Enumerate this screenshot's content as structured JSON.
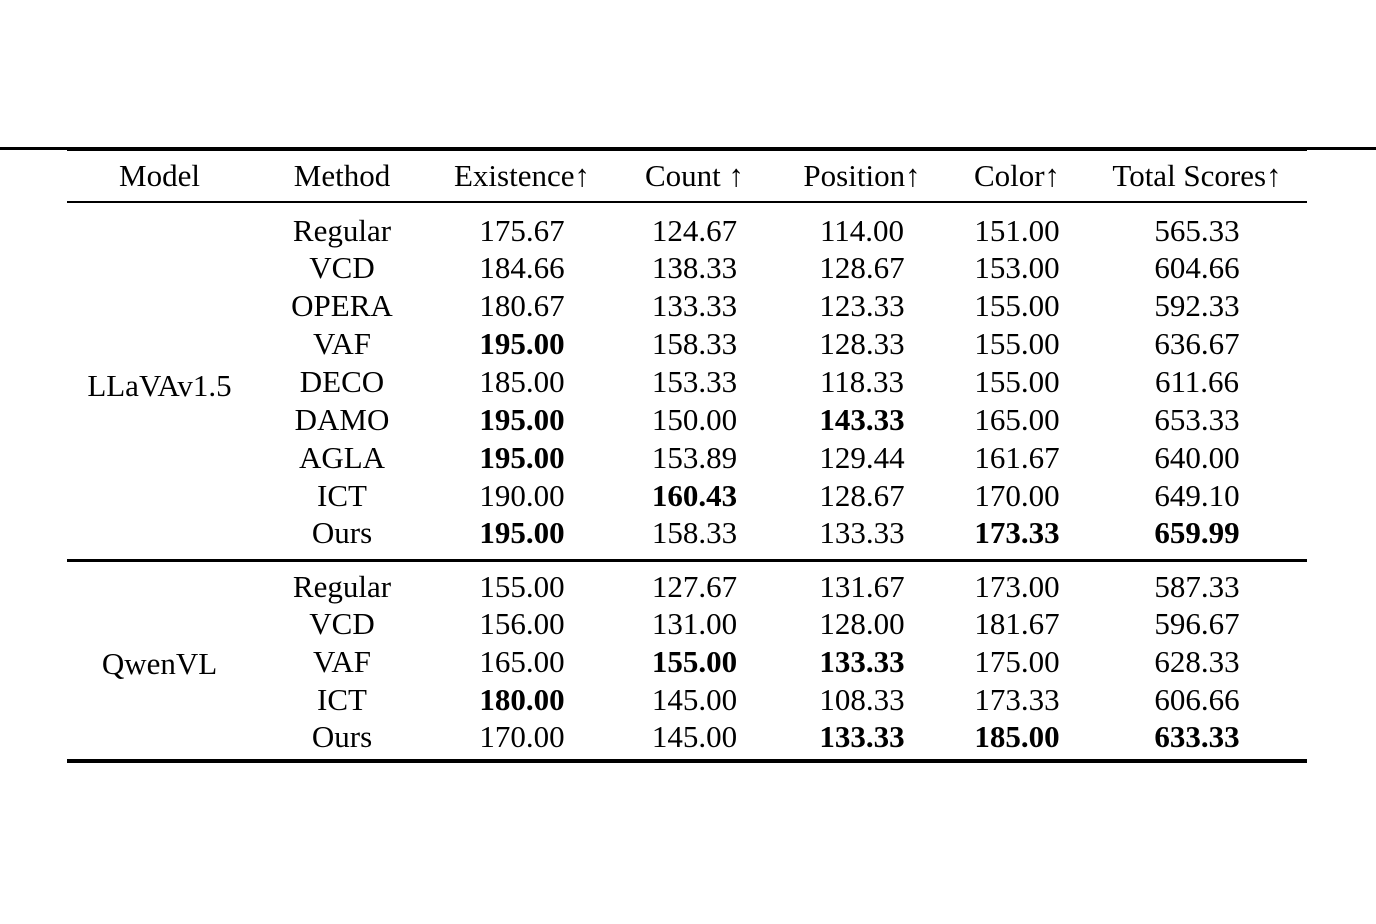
{
  "colors": {
    "text": "#000000",
    "background": "#ffffff",
    "rule": "#000000"
  },
  "table": {
    "headers": [
      "Model",
      "Method",
      "Existence↑",
      "Count ↑",
      "Position↑",
      "Color↑",
      "Total Scores↑"
    ],
    "sections": [
      {
        "model": "LLaVAv1.5",
        "rows": [
          {
            "method": "Regular",
            "cells": [
              {
                "v": "175.67",
                "b": false
              },
              {
                "v": "124.67",
                "b": false
              },
              {
                "v": "114.00",
                "b": false
              },
              {
                "v": "151.00",
                "b": false
              },
              {
                "v": "565.33",
                "b": false
              }
            ]
          },
          {
            "method": "VCD",
            "cells": [
              {
                "v": "184.66",
                "b": false
              },
              {
                "v": "138.33",
                "b": false
              },
              {
                "v": "128.67",
                "b": false
              },
              {
                "v": "153.00",
                "b": false
              },
              {
                "v": "604.66",
                "b": false
              }
            ]
          },
          {
            "method": "OPERA",
            "cells": [
              {
                "v": "180.67",
                "b": false
              },
              {
                "v": "133.33",
                "b": false
              },
              {
                "v": "123.33",
                "b": false
              },
              {
                "v": "155.00",
                "b": false
              },
              {
                "v": "592.33",
                "b": false
              }
            ]
          },
          {
            "method": "VAF",
            "cells": [
              {
                "v": "195.00",
                "b": true
              },
              {
                "v": "158.33",
                "b": false
              },
              {
                "v": "128.33",
                "b": false
              },
              {
                "v": "155.00",
                "b": false
              },
              {
                "v": "636.67",
                "b": false
              }
            ]
          },
          {
            "method": "DECO",
            "cells": [
              {
                "v": "185.00",
                "b": false
              },
              {
                "v": "153.33",
                "b": false
              },
              {
                "v": "118.33",
                "b": false
              },
              {
                "v": "155.00",
                "b": false
              },
              {
                "v": "611.66",
                "b": false
              }
            ]
          },
          {
            "method": "DAMO",
            "cells": [
              {
                "v": "195.00",
                "b": true
              },
              {
                "v": "150.00",
                "b": false
              },
              {
                "v": "143.33",
                "b": true
              },
              {
                "v": "165.00",
                "b": false
              },
              {
                "v": "653.33",
                "b": false
              }
            ]
          },
          {
            "method": "AGLA",
            "cells": [
              {
                "v": "195.00",
                "b": true
              },
              {
                "v": "153.89",
                "b": false
              },
              {
                "v": "129.44",
                "b": false
              },
              {
                "v": "161.67",
                "b": false
              },
              {
                "v": "640.00",
                "b": false
              }
            ]
          },
          {
            "method": "ICT",
            "cells": [
              {
                "v": "190.00",
                "b": false
              },
              {
                "v": "160.43",
                "b": true
              },
              {
                "v": "128.67",
                "b": false
              },
              {
                "v": "170.00",
                "b": false
              },
              {
                "v": "649.10",
                "b": false
              }
            ]
          },
          {
            "method": "Ours",
            "cells": [
              {
                "v": "195.00",
                "b": true
              },
              {
                "v": "158.33",
                "b": false
              },
              {
                "v": "133.33",
                "b": false
              },
              {
                "v": "173.33",
                "b": true
              },
              {
                "v": "659.99",
                "b": true
              }
            ]
          }
        ]
      },
      {
        "model": "QwenVL",
        "rows": [
          {
            "method": "Regular",
            "cells": [
              {
                "v": "155.00",
                "b": false
              },
              {
                "v": "127.67",
                "b": false
              },
              {
                "v": "131.67",
                "b": false
              },
              {
                "v": "173.00",
                "b": false
              },
              {
                "v": "587.33",
                "b": false
              }
            ]
          },
          {
            "method": "VCD",
            "cells": [
              {
                "v": "156.00",
                "b": false
              },
              {
                "v": "131.00",
                "b": false
              },
              {
                "v": "128.00",
                "b": false
              },
              {
                "v": "181.67",
                "b": false
              },
              {
                "v": "596.67",
                "b": false
              }
            ]
          },
          {
            "method": "VAF",
            "cells": [
              {
                "v": "165.00",
                "b": false
              },
              {
                "v": "155.00",
                "b": true
              },
              {
                "v": "133.33",
                "b": true
              },
              {
                "v": "175.00",
                "b": false
              },
              {
                "v": "628.33",
                "b": false
              }
            ]
          },
          {
            "method": "ICT",
            "cells": [
              {
                "v": "180.00",
                "b": true
              },
              {
                "v": "145.00",
                "b": false
              },
              {
                "v": "108.33",
                "b": false
              },
              {
                "v": "173.33",
                "b": false
              },
              {
                "v": "606.66",
                "b": false
              }
            ]
          },
          {
            "method": "Ours",
            "cells": [
              {
                "v": "170.00",
                "b": false
              },
              {
                "v": "145.00",
                "b": false
              },
              {
                "v": "133.33",
                "b": true
              },
              {
                "v": "185.00",
                "b": true
              },
              {
                "v": "633.33",
                "b": true
              }
            ]
          }
        ]
      }
    ]
  }
}
